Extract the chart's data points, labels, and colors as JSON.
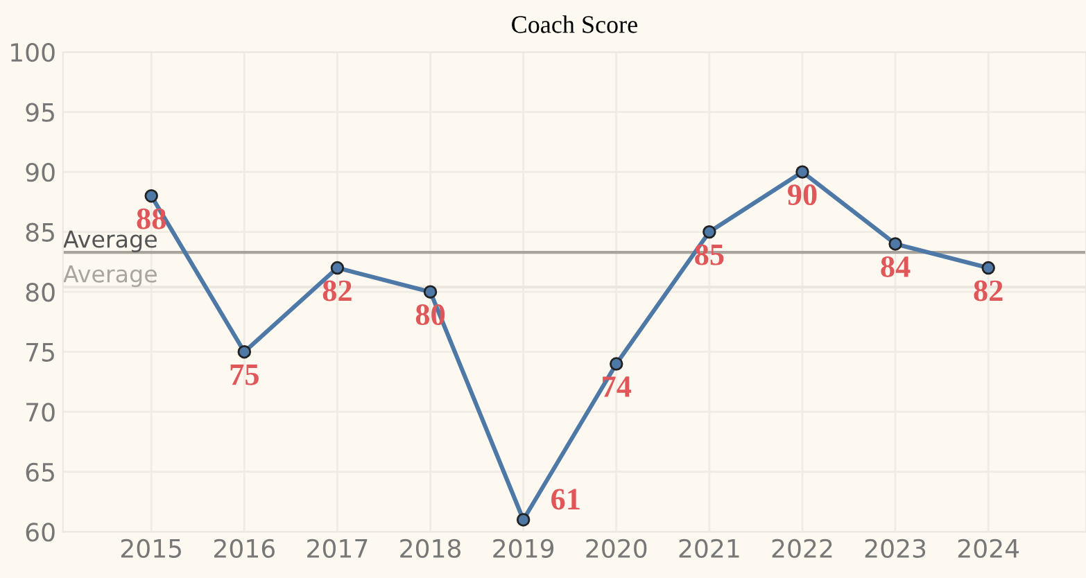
{
  "chart_data": {
    "type": "line",
    "title": "Coach Score",
    "categories": [
      "2015",
      "2016",
      "2017",
      "2018",
      "2019",
      "2020",
      "2021",
      "2022",
      "2023",
      "2024"
    ],
    "series": [
      {
        "color": "#4e79a7",
        "values": [
          88,
          75,
          82,
          80,
          61,
          74,
          85,
          90,
          84,
          82
        ]
      }
    ],
    "ylim": [
      60,
      100
    ],
    "yticks": [
      60,
      65,
      70,
      75,
      80,
      85,
      90,
      95,
      100
    ],
    "data_labels": true,
    "marker": "circle",
    "grid": true,
    "ref_lines": [
      {
        "axis": "y",
        "value": 83.3,
        "label": "Average",
        "color": "#a8a39b"
      },
      {
        "axis": "y",
        "value": 80.4,
        "label": "Average",
        "color": "#ebe6de"
      }
    ]
  }
}
